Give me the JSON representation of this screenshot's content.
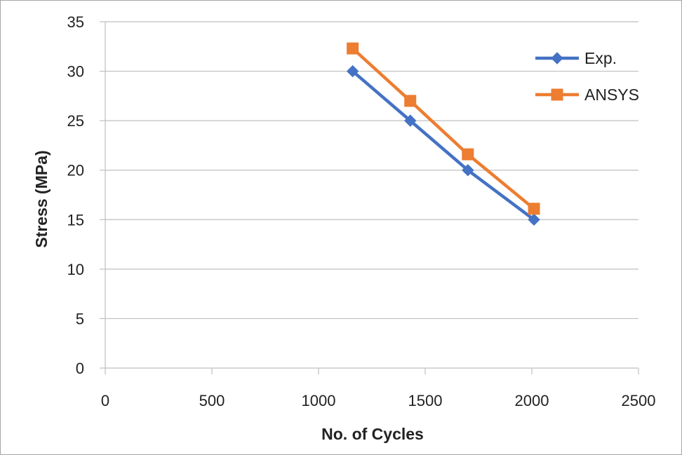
{
  "chart_data": {
    "type": "line",
    "title": "",
    "xlabel": "No. of Cycles",
    "ylabel": "Stress (MPa)",
    "xlim": [
      0,
      2500
    ],
    "ylim": [
      0,
      35
    ],
    "xticks": [
      0,
      500,
      1000,
      1500,
      2000,
      2500
    ],
    "yticks": [
      0,
      5,
      10,
      15,
      20,
      25,
      30,
      35
    ],
    "grid": "horizontal",
    "legend_position": "right",
    "series": [
      {
        "name": "Exp.",
        "color": "#4472c4",
        "marker": "diamond",
        "x": [
          1160,
          1430,
          1700,
          2010
        ],
        "y": [
          30,
          25,
          20,
          15
        ]
      },
      {
        "name": "ANSYS",
        "color": "#ed7d31",
        "marker": "square",
        "x": [
          1160,
          1430,
          1700,
          2010
        ],
        "y": [
          32.3,
          27,
          21.6,
          16.1
        ]
      }
    ]
  }
}
